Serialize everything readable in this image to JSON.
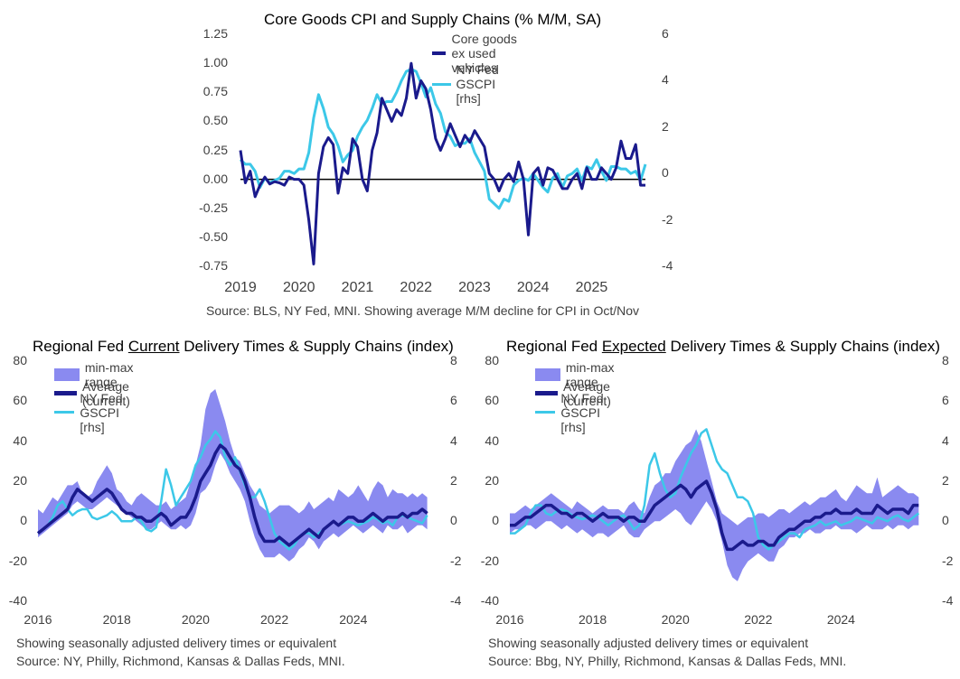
{
  "chart_data": [
    {
      "type": "line",
      "title": "Core Goods CPI and Supply Chains (% M/M, SA)",
      "note": "Source: BLS, NY Fed, MNI. Showing average M/M decline for CPI in Oct/Nov",
      "x_ticks": [
        "2019",
        "2020",
        "2021",
        "2022",
        "2023",
        "2024",
        "2025"
      ],
      "y_left_ticks": [
        "1.25",
        "1.00",
        "0.75",
        "0.50",
        "0.25",
        "0.00",
        "-0.25",
        "-0.50",
        "-0.75"
      ],
      "y_right_ticks": [
        "6",
        "4",
        "2",
        "0",
        "-2",
        "-4"
      ],
      "ylim_left": [
        -0.75,
        1.25
      ],
      "ylim_right": [
        -4,
        6
      ],
      "xlim": [
        2019.0,
        2025.92
      ],
      "legend": [
        "Core goods ex used vehicles",
        "NY Fed GSCPI [rhs]"
      ],
      "colors": {
        "core": "#1a1a8c",
        "gscpi": "#3cc8e8"
      },
      "series": [
        {
          "name": "Core goods ex used vehicles",
          "axis": "left",
          "values": [
            0.25,
            -0.03,
            0.07,
            -0.15,
            -0.05,
            0.02,
            -0.04,
            -0.02,
            -0.03,
            -0.05,
            0.02,
            0.0,
            0.0,
            -0.05,
            -0.35,
            -0.73,
            0.05,
            0.28,
            0.36,
            0.3,
            -0.12,
            0.1,
            0.05,
            0.35,
            0.28,
            0.0,
            -0.1,
            0.25,
            0.4,
            0.7,
            0.6,
            0.5,
            0.6,
            0.55,
            0.7,
            1.0,
            0.7,
            0.85,
            0.78,
            0.6,
            0.35,
            0.25,
            0.35,
            0.48,
            0.38,
            0.28,
            0.38,
            0.32,
            0.42,
            0.35,
            0.28,
            0.05,
            0.0,
            -0.1,
            0.0,
            0.05,
            -0.02,
            0.15,
            0.0,
            -0.48,
            0.05,
            0.1,
            -0.05,
            0.1,
            0.08,
            0.0,
            -0.08,
            -0.08,
            0.0,
            0.05,
            -0.08,
            0.1,
            0.0,
            0.0,
            0.1,
            0.05,
            0.0,
            0.1,
            0.33,
            0.18,
            0.18,
            0.3,
            -0.05,
            -0.05
          ]
        },
        {
          "name": "NY Fed GSCPI [rhs]",
          "axis": "right",
          "values": [
            0.6,
            0.4,
            0.4,
            0.1,
            -0.6,
            -0.2,
            -0.4,
            -0.3,
            -0.2,
            0.1,
            0.1,
            0.0,
            0.2,
            0.2,
            0.9,
            2.4,
            3.4,
            2.8,
            2.0,
            1.7,
            1.2,
            0.5,
            0.8,
            1.0,
            1.6,
            2.0,
            2.3,
            2.8,
            3.4,
            3.0,
            3.1,
            3.1,
            3.5,
            4.0,
            4.4,
            4.5,
            4.4,
            3.9,
            3.3,
            3.7,
            3.0,
            2.6,
            1.8,
            1.6,
            1.2,
            1.3,
            1.3,
            1.5,
            0.9,
            0.5,
            0.1,
            -1.1,
            -1.3,
            -1.5,
            -1.1,
            -1.2,
            -0.5,
            -0.3,
            -0.2,
            -0.3,
            0.0,
            -0.3,
            -0.6,
            -0.8,
            -0.2,
            0.0,
            -0.6,
            -0.1,
            0.0,
            0.2,
            -0.3,
            0.3,
            0.2,
            0.6,
            0.1,
            -0.3,
            0.3,
            0.3,
            0.2,
            0.2,
            0.0,
            0.1,
            -0.3,
            0.4
          ]
        }
      ]
    },
    {
      "type": "area",
      "title_parts": [
        "Regional Fed ",
        "Current",
        " Delivery Times & Supply Chains (index)"
      ],
      "note_lines": [
        "Showing seasonally adjusted delivery times or equivalent",
        "Source: NY, Philly, Richmond, Kansas & Dallas Feds, MNI."
      ],
      "x_ticks": [
        "2016",
        "2018",
        "2020",
        "2022",
        "2024"
      ],
      "y_left_ticks": [
        "80",
        "60",
        "40",
        "20",
        "0",
        "-20",
        "-40"
      ],
      "y_right_ticks": [
        "8",
        "6",
        "4",
        "2",
        "0",
        "-2",
        "-4"
      ],
      "ylim_left": [
        -40,
        80
      ],
      "ylim_right": [
        -4,
        8
      ],
      "xlim": [
        2016.0,
        2026.0
      ],
      "legend": [
        "min-max range",
        "Average (current)",
        "NY Fed GSCPI [rhs]"
      ],
      "colors": {
        "range": "#8a8af0",
        "average": "#1a1a8c",
        "gscpi": "#3cc8e8"
      },
      "x_start": 2016.0,
      "x_step": 0.125,
      "min_values": [
        -8,
        -6,
        -4,
        -2,
        0,
        2,
        4,
        8,
        10,
        8,
        6,
        6,
        8,
        10,
        12,
        10,
        8,
        6,
        4,
        2,
        0,
        -2,
        -4,
        -4,
        -2,
        0,
        -2,
        -4,
        -4,
        -2,
        -4,
        -2,
        4,
        14,
        16,
        20,
        28,
        34,
        30,
        24,
        20,
        16,
        10,
        0,
        -8,
        -14,
        -18,
        -18,
        -18,
        -16,
        -18,
        -20,
        -18,
        -14,
        -12,
        -8,
        -10,
        -14,
        -10,
        -8,
        -6,
        -8,
        -6,
        -4,
        -2,
        -4,
        -6,
        -4,
        -2,
        -4,
        -6,
        -2,
        -4,
        -4,
        -2,
        -6,
        -4,
        -2,
        -2,
        -4
      ],
      "max_values": [
        6,
        4,
        8,
        12,
        10,
        14,
        18,
        18,
        20,
        14,
        12,
        14,
        20,
        24,
        28,
        24,
        16,
        14,
        10,
        8,
        12,
        14,
        12,
        10,
        8,
        8,
        10,
        6,
        8,
        10,
        12,
        20,
        28,
        38,
        56,
        64,
        66,
        58,
        50,
        40,
        32,
        30,
        24,
        18,
        14,
        8,
        6,
        4,
        6,
        8,
        8,
        8,
        6,
        4,
        6,
        10,
        6,
        8,
        10,
        12,
        10,
        16,
        14,
        12,
        14,
        18,
        14,
        10,
        16,
        20,
        18,
        12,
        16,
        14,
        14,
        12,
        14,
        12,
        14,
        12
      ],
      "avg_values": [
        -6,
        -4,
        -2,
        0,
        2,
        4,
        6,
        12,
        16,
        14,
        12,
        10,
        12,
        14,
        16,
        14,
        10,
        6,
        4,
        4,
        2,
        2,
        0,
        0,
        2,
        4,
        2,
        -2,
        0,
        2,
        2,
        6,
        12,
        20,
        24,
        28,
        34,
        38,
        36,
        32,
        28,
        26,
        20,
        12,
        2,
        -6,
        -10,
        -10,
        -10,
        -8,
        -10,
        -12,
        -10,
        -8,
        -6,
        -4,
        -6,
        -8,
        -4,
        -2,
        0,
        -2,
        0,
        2,
        2,
        0,
        0,
        2,
        4,
        2,
        0,
        2,
        2,
        2,
        4,
        2,
        4,
        4,
        6,
        4
      ],
      "gscpi_values": [
        -0.6,
        -0.4,
        -0.2,
        0.2,
        0.8,
        1.0,
        0.6,
        0.3,
        0.5,
        0.6,
        0.6,
        0.2,
        0.1,
        0.2,
        0.3,
        0.5,
        0.3,
        0.0,
        0.0,
        0.0,
        0.2,
        0.0,
        -0.4,
        -0.5,
        -0.3,
        1.0,
        2.6,
        1.8,
        0.8,
        1.2,
        1.6,
        2.0,
        2.8,
        3.2,
        3.8,
        4.1,
        4.5,
        4.2,
        3.2,
        2.8,
        3.2,
        2.5,
        1.8,
        1.2,
        1.2,
        1.6,
        1.0,
        0.2,
        -0.6,
        -1.0,
        -1.2,
        -1.4,
        -1.2,
        -0.8,
        -0.6,
        -0.6,
        -0.8,
        -0.6,
        -0.4,
        -0.2,
        0.0,
        -0.2,
        -0.1,
        0.0,
        -0.1,
        -0.2,
        -0.1,
        0.0,
        0.2,
        0.1,
        -0.1,
        0.0,
        -0.2,
        0.2,
        0.3,
        0.2,
        0.1,
        0.0,
        -0.1,
        0.3
      ]
    },
    {
      "type": "area",
      "title_parts": [
        "Regional Fed ",
        "Expected",
        " Delivery Times & Supply Chains (index)"
      ],
      "note_lines": [
        "Showing seasonally adjusted delivery times or equivalent",
        "Source: Bbg, NY, Philly, Richmond, Kansas & Dallas Feds, MNI."
      ],
      "x_ticks": [
        "2016",
        "2018",
        "2020",
        "2022",
        "2024"
      ],
      "y_left_ticks": [
        "80",
        "60",
        "40",
        "20",
        "0",
        "-20",
        "-40"
      ],
      "y_right_ticks": [
        "8",
        "6",
        "4",
        "2",
        "0",
        "-2",
        "-4"
      ],
      "ylim_left": [
        -40,
        80
      ],
      "ylim_right": [
        -4,
        8
      ],
      "xlim": [
        2016.0,
        2026.0
      ],
      "legend": [
        "min-max range",
        "Average (current)",
        "NY Fed GSCPI [rhs]"
      ],
      "colors": {
        "range": "#8a8af0",
        "average": "#1a1a8c",
        "gscpi": "#3cc8e8"
      },
      "x_start": 2016.0,
      "x_step": 0.125,
      "min_values": [
        -6,
        -4,
        -4,
        -2,
        -2,
        -4,
        -2,
        0,
        0,
        -2,
        -4,
        -2,
        -4,
        -6,
        -4,
        -6,
        -8,
        -6,
        -6,
        -8,
        -6,
        -4,
        -2,
        -6,
        -8,
        -8,
        -4,
        -2,
        0,
        0,
        2,
        4,
        6,
        4,
        0,
        -2,
        2,
        6,
        10,
        6,
        0,
        -10,
        -22,
        -28,
        -30,
        -24,
        -20,
        -18,
        -16,
        -18,
        -20,
        -20,
        -14,
        -12,
        -8,
        -8,
        -6,
        -6,
        -4,
        -6,
        -6,
        -4,
        -4,
        -2,
        -4,
        -4,
        -4,
        -6,
        -4,
        -2,
        -4,
        -4,
        -4,
        -2,
        -4,
        -2,
        -2,
        -4,
        -2,
        -2
      ],
      "max_values": [
        4,
        4,
        6,
        8,
        6,
        8,
        10,
        12,
        14,
        12,
        10,
        8,
        6,
        10,
        8,
        6,
        4,
        6,
        8,
        6,
        6,
        6,
        4,
        8,
        10,
        6,
        4,
        12,
        18,
        20,
        24,
        24,
        30,
        34,
        38,
        40,
        46,
        40,
        30,
        20,
        10,
        4,
        2,
        0,
        -2,
        0,
        2,
        2,
        4,
        4,
        2,
        4,
        6,
        6,
        4,
        6,
        8,
        10,
        8,
        10,
        12,
        12,
        14,
        16,
        12,
        10,
        14,
        18,
        16,
        14,
        14,
        22,
        12,
        14,
        16,
        18,
        16,
        14,
        14,
        12
      ],
      "avg_values": [
        -2,
        -2,
        0,
        2,
        2,
        4,
        6,
        8,
        8,
        6,
        4,
        4,
        2,
        4,
        4,
        2,
        0,
        2,
        4,
        2,
        2,
        2,
        0,
        2,
        2,
        0,
        0,
        4,
        8,
        10,
        12,
        14,
        16,
        18,
        16,
        12,
        16,
        18,
        20,
        14,
        6,
        -6,
        -14,
        -14,
        -12,
        -10,
        -12,
        -12,
        -10,
        -10,
        -12,
        -12,
        -8,
        -6,
        -4,
        -4,
        -2,
        0,
        0,
        2,
        2,
        4,
        4,
        6,
        4,
        4,
        4,
        6,
        4,
        4,
        4,
        8,
        6,
        4,
        6,
        6,
        6,
        4,
        8,
        8
      ],
      "gscpi_values": [
        -0.6,
        -0.6,
        -0.4,
        -0.2,
        0.4,
        0.8,
        0.8,
        0.4,
        0.3,
        0.5,
        0.6,
        0.5,
        0.3,
        0.2,
        0.1,
        0.2,
        0.3,
        0.2,
        0.0,
        -0.2,
        0.0,
        0.2,
        0.3,
        0.0,
        -0.4,
        -0.2,
        0.8,
        2.8,
        3.4,
        2.4,
        1.6,
        1.2,
        1.4,
        2.2,
        2.8,
        3.4,
        3.8,
        4.4,
        4.6,
        3.8,
        3.0,
        2.6,
        2.4,
        1.8,
        1.2,
        1.2,
        1.0,
        0.4,
        -0.8,
        -1.2,
        -1.4,
        -1.2,
        -1.0,
        -0.8,
        -0.6,
        -0.6,
        -0.8,
        -0.4,
        -0.3,
        -0.2,
        0.0,
        -0.2,
        -0.1,
        0.0,
        -0.2,
        -0.1,
        0.0,
        0.2,
        0.1,
        0.0,
        -0.1,
        0.2,
        0.1,
        0.0,
        0.2,
        0.3,
        0.1,
        0.0,
        0.2,
        0.4
      ]
    }
  ]
}
